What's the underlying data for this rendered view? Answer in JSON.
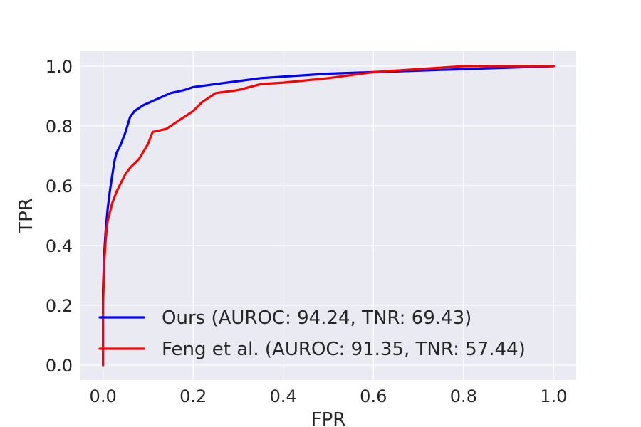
{
  "chart_data": {
    "type": "line",
    "xlabel": "FPR",
    "ylabel": "TPR",
    "xlim": [
      -0.05,
      1.05
    ],
    "ylim": [
      -0.05,
      1.05
    ],
    "xticks": [
      "0.0",
      "0.2",
      "0.4",
      "0.6",
      "0.8",
      "1.0"
    ],
    "yticks": [
      "0.0",
      "0.2",
      "0.4",
      "0.6",
      "0.8",
      "1.0"
    ],
    "grid": true,
    "legend_position": "lower-right",
    "background_color": "#eaeaf2",
    "series": [
      {
        "name": "Ours (AUROC: 94.24, TNR: 69.43)",
        "color": "#0000ff",
        "x": [
          0.0,
          0.0,
          0.003,
          0.006,
          0.01,
          0.015,
          0.02,
          0.025,
          0.03,
          0.04,
          0.05,
          0.06,
          0.07,
          0.09,
          0.12,
          0.15,
          0.18,
          0.2,
          0.25,
          0.3,
          0.35,
          0.4,
          0.45,
          0.5,
          0.6,
          0.7,
          0.8,
          0.9,
          1.0
        ],
        "y": [
          0.0,
          0.25,
          0.38,
          0.45,
          0.52,
          0.58,
          0.63,
          0.68,
          0.71,
          0.74,
          0.78,
          0.83,
          0.85,
          0.87,
          0.89,
          0.91,
          0.92,
          0.93,
          0.94,
          0.95,
          0.96,
          0.965,
          0.97,
          0.975,
          0.98,
          0.985,
          0.99,
          0.995,
          1.0
        ]
      },
      {
        "name": "Feng et al. (AUROC: 91.35, TNR: 57.44)",
        "color": "#ff0000",
        "x": [
          0.0,
          0.0,
          0.003,
          0.006,
          0.01,
          0.02,
          0.03,
          0.04,
          0.05,
          0.06,
          0.08,
          0.1,
          0.11,
          0.14,
          0.16,
          0.18,
          0.2,
          0.22,
          0.25,
          0.3,
          0.35,
          0.4,
          0.5,
          0.6,
          0.7,
          0.8,
          0.9,
          1.0
        ],
        "y": [
          0.0,
          0.2,
          0.35,
          0.42,
          0.48,
          0.54,
          0.58,
          0.61,
          0.64,
          0.66,
          0.69,
          0.74,
          0.78,
          0.79,
          0.81,
          0.83,
          0.85,
          0.88,
          0.91,
          0.92,
          0.94,
          0.945,
          0.96,
          0.98,
          0.99,
          1.0,
          1.0,
          1.0
        ]
      }
    ]
  }
}
